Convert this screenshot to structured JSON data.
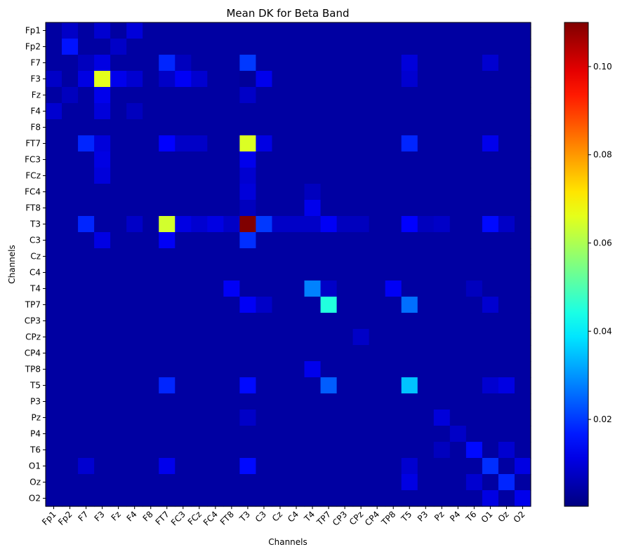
{
  "chart_data": {
    "type": "heatmap",
    "title": "Mean DK for Beta Band",
    "xlabel": "Channels",
    "ylabel": "Channels",
    "x_categories": [
      "Fp1",
      "Fp2",
      "F7",
      "F3",
      "Fz",
      "F4",
      "F8",
      "FT7",
      "FC3",
      "FCz",
      "FC4",
      "FT8",
      "T3",
      "C3",
      "Cz",
      "C4",
      "T4",
      "TP7",
      "CP3",
      "CPz",
      "CP4",
      "TP8",
      "T5",
      "P3",
      "Pz",
      "P4",
      "T6",
      "O1",
      "Oz",
      "O2"
    ],
    "y_categories": [
      "Fp1",
      "Fp2",
      "F7",
      "F3",
      "Fz",
      "F4",
      "F8",
      "FT7",
      "FC3",
      "FCz",
      "FC4",
      "FT8",
      "T3",
      "C3",
      "Cz",
      "C4",
      "T4",
      "TP7",
      "CP3",
      "CPz",
      "CP4",
      "TP8",
      "T5",
      "P3",
      "Pz",
      "P4",
      "T6",
      "O1",
      "Oz",
      "O2"
    ],
    "colormap": "jet",
    "colorbar": {
      "range": [
        0.0003,
        0.11
      ],
      "ticks": [
        0.02,
        0.04,
        0.06,
        0.08,
        0.1
      ],
      "tick_labels": [
        "0.02",
        "0.04",
        "0.06",
        "0.08",
        "0.10"
      ]
    },
    "background_value": 0.004,
    "cells": [
      {
        "row": "Fp1",
        "col": "Fp2",
        "value": 0.008
      },
      {
        "row": "Fp1",
        "col": "F3",
        "value": 0.009
      },
      {
        "row": "Fp1",
        "col": "F4",
        "value": 0.01
      },
      {
        "row": "Fp2",
        "col": "Fp2",
        "value": 0.016
      },
      {
        "row": "Fp2",
        "col": "Fz",
        "value": 0.008
      },
      {
        "row": "F7",
        "col": "F7",
        "value": 0.007
      },
      {
        "row": "F7",
        "col": "F3",
        "value": 0.011
      },
      {
        "row": "F7",
        "col": "FT7",
        "value": 0.018
      },
      {
        "row": "F7",
        "col": "FC3",
        "value": 0.007
      },
      {
        "row": "F7",
        "col": "T3",
        "value": 0.02
      },
      {
        "row": "F7",
        "col": "T5",
        "value": 0.01
      },
      {
        "row": "F7",
        "col": "O1",
        "value": 0.009
      },
      {
        "row": "F3",
        "col": "Fp1",
        "value": 0.008
      },
      {
        "row": "F3",
        "col": "F7",
        "value": 0.011
      },
      {
        "row": "F3",
        "col": "F3",
        "value": 0.066
      },
      {
        "row": "F3",
        "col": "Fz",
        "value": 0.012
      },
      {
        "row": "F3",
        "col": "F4",
        "value": 0.009
      },
      {
        "row": "F3",
        "col": "FT7",
        "value": 0.008
      },
      {
        "row": "F3",
        "col": "FC3",
        "value": 0.013
      },
      {
        "row": "F3",
        "col": "FCz",
        "value": 0.009
      },
      {
        "row": "F3",
        "col": "T3",
        "value": 0.003
      },
      {
        "row": "F3",
        "col": "C3",
        "value": 0.012
      },
      {
        "row": "F3",
        "col": "T5",
        "value": 0.009
      },
      {
        "row": "Fz",
        "col": "Fp2",
        "value": 0.007
      },
      {
        "row": "Fz",
        "col": "F3",
        "value": 0.012
      },
      {
        "row": "Fz",
        "col": "T3",
        "value": 0.008
      },
      {
        "row": "F4",
        "col": "Fp1",
        "value": 0.009
      },
      {
        "row": "F4",
        "col": "F3",
        "value": 0.01
      },
      {
        "row": "F4",
        "col": "F4",
        "value": 0.007
      },
      {
        "row": "FT7",
        "col": "F7",
        "value": 0.018
      },
      {
        "row": "FT7",
        "col": "F3",
        "value": 0.01
      },
      {
        "row": "FT7",
        "col": "FT7",
        "value": 0.014
      },
      {
        "row": "FT7",
        "col": "FC3",
        "value": 0.008
      },
      {
        "row": "FT7",
        "col": "FCz",
        "value": 0.008
      },
      {
        "row": "FT7",
        "col": "T3",
        "value": 0.065
      },
      {
        "row": "FT7",
        "col": "C3",
        "value": 0.011
      },
      {
        "row": "FT7",
        "col": "T5",
        "value": 0.018
      },
      {
        "row": "FT7",
        "col": "O1",
        "value": 0.012
      },
      {
        "row": "FC3",
        "col": "F3",
        "value": 0.011
      },
      {
        "row": "FC3",
        "col": "T3",
        "value": 0.012
      },
      {
        "row": "FCz",
        "col": "F3",
        "value": 0.01
      },
      {
        "row": "FCz",
        "col": "T3",
        "value": 0.009
      },
      {
        "row": "FC4",
        "col": "T3",
        "value": 0.01
      },
      {
        "row": "FC4",
        "col": "T4",
        "value": 0.007
      },
      {
        "row": "FT8",
        "col": "T3",
        "value": 0.007
      },
      {
        "row": "FT8",
        "col": "T4",
        "value": 0.012
      },
      {
        "row": "T3",
        "col": "F7",
        "value": 0.018
      },
      {
        "row": "T3",
        "col": "F4",
        "value": 0.008
      },
      {
        "row": "T3",
        "col": "FT7",
        "value": 0.064
      },
      {
        "row": "T3",
        "col": "FC3",
        "value": 0.011
      },
      {
        "row": "T3",
        "col": "FCz",
        "value": 0.009
      },
      {
        "row": "T3",
        "col": "FC4",
        "value": 0.011
      },
      {
        "row": "T3",
        "col": "FT8",
        "value": 0.008
      },
      {
        "row": "T3",
        "col": "T3",
        "value": 0.11
      },
      {
        "row": "T3",
        "col": "C3",
        "value": 0.02
      },
      {
        "row": "T3",
        "col": "Cz",
        "value": 0.008
      },
      {
        "row": "T3",
        "col": "C4",
        "value": 0.008
      },
      {
        "row": "T3",
        "col": "T4",
        "value": 0.008
      },
      {
        "row": "T3",
        "col": "TP7",
        "value": 0.013
      },
      {
        "row": "T3",
        "col": "CP3",
        "value": 0.007
      },
      {
        "row": "T3",
        "col": "CPz",
        "value": 0.007
      },
      {
        "row": "T3",
        "col": "T5",
        "value": 0.014
      },
      {
        "row": "T3",
        "col": "P3",
        "value": 0.007
      },
      {
        "row": "T3",
        "col": "Pz",
        "value": 0.008
      },
      {
        "row": "T3",
        "col": "O1",
        "value": 0.015
      },
      {
        "row": "T3",
        "col": "Oz",
        "value": 0.008
      },
      {
        "row": "C3",
        "col": "F3",
        "value": 0.011
      },
      {
        "row": "C3",
        "col": "FT7",
        "value": 0.013
      },
      {
        "row": "C3",
        "col": "T3",
        "value": 0.019
      },
      {
        "row": "T4",
        "col": "FT8",
        "value": 0.013
      },
      {
        "row": "T4",
        "col": "T4",
        "value": 0.028
      },
      {
        "row": "T4",
        "col": "TP7",
        "value": 0.008
      },
      {
        "row": "T4",
        "col": "TP8",
        "value": 0.013
      },
      {
        "row": "T4",
        "col": "T6",
        "value": 0.007
      },
      {
        "row": "TP7",
        "col": "T3",
        "value": 0.013
      },
      {
        "row": "TP7",
        "col": "C3",
        "value": 0.008
      },
      {
        "row": "TP7",
        "col": "TP7",
        "value": 0.045
      },
      {
        "row": "TP7",
        "col": "T5",
        "value": 0.026
      },
      {
        "row": "TP7",
        "col": "O1",
        "value": 0.009
      },
      {
        "row": "CPz",
        "col": "CPz",
        "value": 0.008
      },
      {
        "row": "TP8",
        "col": "T4",
        "value": 0.012
      },
      {
        "row": "T5",
        "col": "FT7",
        "value": 0.018
      },
      {
        "row": "T5",
        "col": "T3",
        "value": 0.015
      },
      {
        "row": "T5",
        "col": "TP7",
        "value": 0.024
      },
      {
        "row": "T5",
        "col": "T5",
        "value": 0.035
      },
      {
        "row": "T5",
        "col": "O1",
        "value": 0.009
      },
      {
        "row": "T5",
        "col": "Oz",
        "value": 0.011
      },
      {
        "row": "Pz",
        "col": "T3",
        "value": 0.008
      },
      {
        "row": "Pz",
        "col": "Pz",
        "value": 0.01
      },
      {
        "row": "P4",
        "col": "P4",
        "value": 0.008
      },
      {
        "row": "T6",
        "col": "Pz",
        "value": 0.007
      },
      {
        "row": "T6",
        "col": "T6",
        "value": 0.015
      },
      {
        "row": "T6",
        "col": "Oz",
        "value": 0.009
      },
      {
        "row": "O1",
        "col": "F7",
        "value": 0.009
      },
      {
        "row": "O1",
        "col": "FT7",
        "value": 0.012
      },
      {
        "row": "O1",
        "col": "T3",
        "value": 0.015
      },
      {
        "row": "O1",
        "col": "T5",
        "value": 0.009
      },
      {
        "row": "O1",
        "col": "O1",
        "value": 0.019
      },
      {
        "row": "O1",
        "col": "O2",
        "value": 0.011
      },
      {
        "row": "Oz",
        "col": "T5",
        "value": 0.011
      },
      {
        "row": "Oz",
        "col": "T6",
        "value": 0.009
      },
      {
        "row": "Oz",
        "col": "Oz",
        "value": 0.018
      },
      {
        "row": "O2",
        "col": "O1",
        "value": 0.011
      },
      {
        "row": "O2",
        "col": "O2",
        "value": 0.012
      }
    ]
  }
}
